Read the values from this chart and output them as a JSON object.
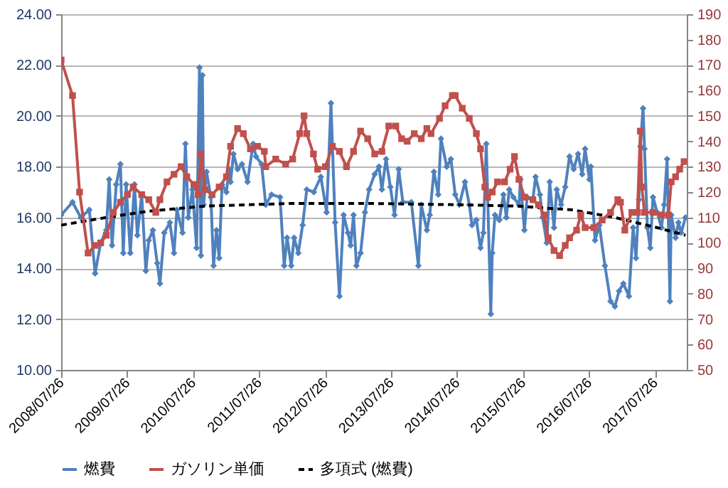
{
  "chart_data": {
    "type": "line",
    "grid": "y",
    "legend": "bottom",
    "xlim": [
      "2008-07-26",
      "2018-01-19"
    ],
    "xticks": [
      {
        "value": "2008-07-26",
        "label": "2008/07/26"
      },
      {
        "value": "2009-07-26",
        "label": "2009/07/26"
      },
      {
        "value": "2010-07-26",
        "label": "2010/07/26"
      },
      {
        "value": "2011-07-26",
        "label": "2011/07/26"
      },
      {
        "value": "2012-07-26",
        "label": "2012/07/26"
      },
      {
        "value": "2013-07-26",
        "label": "2013/07/26"
      },
      {
        "value": "2014-07-26",
        "label": "2014/07/26"
      },
      {
        "value": "2015-07-26",
        "label": "2015/07/26"
      },
      {
        "value": "2016-07-26",
        "label": "2016/07/26"
      },
      {
        "value": "2017-07-26",
        "label": "2017/07/26"
      }
    ],
    "ylim": [
      10,
      24
    ],
    "yticks": [
      {
        "value": 10,
        "label": "10.00"
      },
      {
        "value": 12,
        "label": "12.00"
      },
      {
        "value": 14,
        "label": "14.00"
      },
      {
        "value": 16,
        "label": "16.00"
      },
      {
        "value": 18,
        "label": "18.00"
      },
      {
        "value": 20,
        "label": "20.00"
      },
      {
        "value": 22,
        "label": "22.00"
      },
      {
        "value": 24,
        "label": "24.00"
      }
    ],
    "y2lim": [
      50,
      190
    ],
    "y2ticks": [
      50,
      60,
      70,
      80,
      90,
      100,
      110,
      120,
      130,
      140,
      150,
      160,
      170,
      180,
      190
    ],
    "series": [
      {
        "name": "燃費",
        "color": "#4f81bd",
        "marker": "diamond",
        "line_style": "solid",
        "x": [
          "2008-07-26",
          "2008-09-27",
          "2008-11-12",
          "2008-12-29",
          "2009-01-30",
          "2009-03-02",
          "2009-04-02",
          "2009-04-18",
          "2009-05-04",
          "2009-05-27",
          "2009-06-19",
          "2009-07-05",
          "2009-07-21",
          "2009-08-13",
          "2009-09-05",
          "2009-09-21",
          "2009-10-15",
          "2009-11-07",
          "2009-11-23",
          "2009-12-16",
          "2010-01-09",
          "2010-01-24",
          "2010-02-17",
          "2010-03-20",
          "2010-04-12",
          "2010-04-28",
          "2010-05-29",
          "2010-06-14",
          "2010-06-30",
          "2010-07-23",
          "2010-08-15",
          "2010-08-31",
          "2010-09-08",
          "2010-09-16",
          "2010-09-23",
          "2010-10-09",
          "2010-11-02",
          "2010-11-17",
          "2010-12-03",
          "2010-12-18",
          "2011-01-03",
          "2011-01-27",
          "2011-02-11",
          "2011-02-19",
          "2011-03-07",
          "2011-03-30",
          "2011-04-23",
          "2011-05-24",
          "2011-06-24",
          "2011-07-10",
          "2011-08-10",
          "2011-09-02",
          "2011-10-04",
          "2011-11-20",
          "2011-12-13",
          "2011-12-29",
          "2012-01-21",
          "2012-02-06",
          "2012-02-29",
          "2012-03-24",
          "2012-04-16",
          "2012-05-25",
          "2012-07-03",
          "2012-08-04",
          "2012-08-28",
          "2012-09-20",
          "2012-10-14",
          "2012-11-06",
          "2012-11-30",
          "2012-12-15",
          "2012-12-31",
          "2013-01-16",
          "2013-02-08",
          "2013-03-04",
          "2013-03-27",
          "2013-04-27",
          "2013-05-21",
          "2013-06-06",
          "2013-06-29",
          "2013-07-23",
          "2013-08-15",
          "2013-09-07",
          "2013-09-30",
          "2013-11-16",
          "2013-12-25",
          "2014-01-10",
          "2014-02-10",
          "2014-02-26",
          "2014-03-21",
          "2014-04-14",
          "2014-04-29",
          "2014-05-31",
          "2014-06-23",
          "2014-07-17",
          "2014-08-09",
          "2014-09-09",
          "2014-10-03",
          "2014-10-18",
          "2014-11-11",
          "2014-12-04",
          "2014-12-20",
          "2015-01-05",
          "2015-01-30",
          "2015-02-07",
          "2015-02-22",
          "2015-03-18",
          "2015-04-10",
          "2015-04-26",
          "2015-05-12",
          "2015-06-04",
          "2015-07-05",
          "2015-07-13",
          "2015-08-04",
          "2015-08-19",
          "2015-09-20",
          "2015-10-05",
          "2015-10-29",
          "2015-11-13",
          "2015-12-06",
          "2015-12-22",
          "2016-01-15",
          "2016-01-30",
          "2016-02-23",
          "2016-03-17",
          "2016-04-10",
          "2016-05-03",
          "2016-05-27",
          "2016-06-19",
          "2016-07-05",
          "2016-07-29",
          "2016-08-06",
          "2016-08-29",
          "2016-09-22",
          "2016-10-23",
          "2016-11-23",
          "2016-12-17",
          "2017-01-09",
          "2017-02-02",
          "2017-03-05",
          "2017-03-28",
          "2017-04-13",
          "2017-04-29",
          "2017-05-07",
          "2017-05-22",
          "2017-05-30",
          "2017-06-15",
          "2017-07-01",
          "2017-07-16",
          "2017-08-08",
          "2017-09-01",
          "2017-09-16",
          "2017-10-02",
          "2017-10-18",
          "2017-10-25",
          "2017-11-18",
          "2017-12-04",
          "2017-12-19",
          "2018-01-12"
        ],
        "values": [
          16.1,
          16.6,
          16.0,
          16.3,
          13.8,
          15.0,
          15.5,
          17.5,
          14.9,
          17.3,
          18.1,
          14.6,
          17.3,
          14.6,
          17.3,
          15.3,
          16.9,
          13.9,
          15.1,
          15.5,
          14.2,
          13.4,
          15.4,
          15.8,
          14.6,
          16.3,
          15.4,
          18.9,
          16.0,
          17.1,
          14.8,
          21.9,
          14.5,
          21.6,
          16.5,
          17.8,
          16.8,
          14.1,
          15.5,
          14.4,
          17.3,
          17.0,
          17.9,
          17.4,
          18.5,
          17.9,
          18.1,
          17.4,
          18.9,
          18.4,
          18.1,
          16.5,
          16.9,
          16.8,
          14.1,
          15.2,
          14.1,
          15.2,
          14.6,
          15.7,
          17.1,
          17.0,
          17.6,
          16.2,
          20.5,
          15.8,
          12.9,
          16.1,
          15.4,
          14.9,
          16.1,
          14.1,
          14.6,
          16.2,
          17.1,
          17.7,
          18.0,
          17.1,
          18.3,
          17.2,
          16.1,
          17.9,
          16.6,
          16.6,
          14.1,
          16.5,
          15.5,
          16.1,
          17.8,
          16.9,
          19.1,
          18.0,
          18.3,
          16.9,
          16.5,
          17.4,
          16.5,
          15.7,
          15.9,
          14.8,
          15.4,
          18.9,
          12.2,
          14.6,
          16.1,
          15.9,
          16.9,
          16.0,
          17.1,
          16.8,
          16.5,
          17.5,
          15.5,
          16.8,
          16.7,
          17.6,
          16.9,
          16.0,
          15.0,
          17.4,
          15.6,
          17.1,
          16.5,
          17.2,
          18.4,
          17.9,
          18.5,
          17.7,
          18.7,
          17.5,
          18.0,
          15.1,
          15.7,
          14.1,
          12.7,
          12.5,
          13.1,
          13.4,
          12.9,
          15.6,
          14.4,
          16.7,
          18.8,
          20.3,
          18.7,
          15.6,
          14.8,
          16.8,
          16.2,
          15.6,
          16.5,
          18.3,
          12.7,
          16.1,
          15.2,
          15.8,
          15.4,
          16.0
        ]
      },
      {
        "name": "ガソリン単価",
        "color": "#c0504d",
        "marker": "square",
        "line_style": "solid",
        "axis": "y2",
        "x": [
          "2008-07-26",
          "2008-09-27",
          "2008-11-05",
          "2008-12-22",
          "2009-01-30",
          "2009-03-02",
          "2009-04-02",
          "2009-05-11",
          "2009-06-19",
          "2009-07-28",
          "2009-08-29",
          "2009-10-15",
          "2009-11-23",
          "2010-01-01",
          "2010-01-24",
          "2010-03-04",
          "2010-04-12",
          "2010-05-21",
          "2010-06-22",
          "2010-07-31",
          "2010-08-23",
          "2010-09-08",
          "2010-10-01",
          "2010-11-09",
          "2010-12-18",
          "2011-01-27",
          "2011-02-19",
          "2011-03-30",
          "2011-05-01",
          "2011-06-09",
          "2011-07-19",
          "2011-08-25",
          "2011-09-02",
          "2011-10-27",
          "2011-12-21",
          "2012-01-29",
          "2012-03-08",
          "2012-04-01",
          "2012-04-16",
          "2012-05-23",
          "2012-06-15",
          "2012-07-28",
          "2012-09-05",
          "2012-10-14",
          "2012-11-22",
          "2012-12-31",
          "2013-02-08",
          "2013-03-19",
          "2013-04-27",
          "2013-06-06",
          "2013-07-14",
          "2013-08-22",
          "2013-09-23",
          "2013-10-24",
          "2013-12-02",
          "2014-01-10",
          "2014-02-10",
          "2014-03-05",
          "2014-04-21",
          "2014-05-22",
          "2014-07-01",
          "2014-07-17",
          "2014-08-25",
          "2014-10-03",
          "2014-11-11",
          "2014-12-04",
          "2014-12-28",
          "2015-01-12",
          "2015-02-07",
          "2015-03-08",
          "2015-04-16",
          "2015-05-17",
          "2015-06-10",
          "2015-07-05",
          "2015-08-04",
          "2015-09-20",
          "2015-10-21",
          "2015-11-21",
          "2015-12-14",
          "2016-01-15",
          "2016-02-15",
          "2016-03-17",
          "2016-04-10",
          "2016-05-19",
          "2016-06-11",
          "2016-07-05",
          "2016-08-22",
          "2016-10-08",
          "2016-11-23",
          "2017-01-02",
          "2017-01-17",
          "2017-02-10",
          "2017-03-21",
          "2017-04-21",
          "2017-05-07",
          "2017-05-15",
          "2017-05-30",
          "2017-07-16",
          "2017-09-01",
          "2017-10-10",
          "2017-10-25",
          "2017-11-18",
          "2017-12-11",
          "2018-01-04"
        ],
        "values": [
          172,
          158,
          120,
          96,
          99,
          100,
          103,
          112,
          116,
          119,
          122,
          119,
          117,
          112,
          117,
          124,
          127,
          130,
          126,
          123,
          119,
          135,
          121,
          119,
          122,
          126,
          138,
          145,
          143,
          137,
          138,
          136,
          130,
          133,
          131,
          133,
          143,
          150,
          143,
          135,
          129,
          130,
          138,
          136,
          130,
          136,
          144,
          141,
          135,
          136,
          146,
          146,
          141,
          140,
          143,
          141,
          145,
          143,
          149,
          154,
          158,
          158,
          153,
          149,
          143,
          137,
          122,
          118,
          120,
          124,
          124,
          129,
          134,
          125,
          118,
          117,
          115,
          111,
          102,
          97,
          95,
          99,
          102,
          105,
          111,
          106,
          106,
          109,
          112,
          117,
          116,
          105,
          112,
          112,
          144,
          122,
          112,
          112,
          111,
          111,
          124,
          126,
          129,
          132
        ]
      },
      {
        "name": "多項式 (燃費)",
        "color": "#000000",
        "marker": "none",
        "line_style": "dashed",
        "x": [
          "2008-07-26",
          "2009-04-02",
          "2009-11-23",
          "2010-10-01",
          "2012-01-12",
          "2013-04-27",
          "2014-08-09",
          "2015-06-17",
          "2016-04-25",
          "2016-12-17",
          "2017-08-08",
          "2018-01-12"
        ],
        "values": [
          15.7,
          16.0,
          16.25,
          16.45,
          16.55,
          16.55,
          16.5,
          16.45,
          16.3,
          16.0,
          15.6,
          15.3
        ]
      }
    ]
  }
}
